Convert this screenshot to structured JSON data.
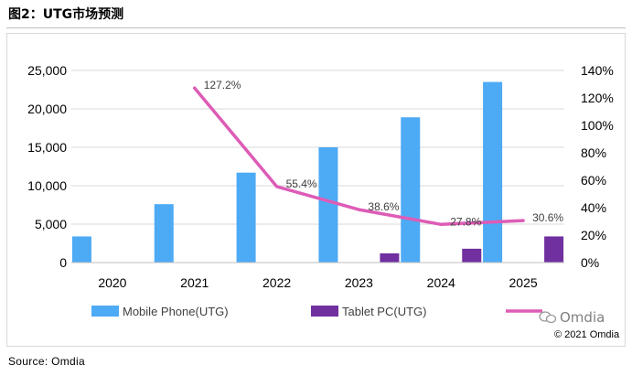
{
  "title": "图2：UTG市场预测",
  "source": "Source: Omdia",
  "brand": {
    "name": "Omdia",
    "copyright": "© 2021 Omdia"
  },
  "chart_data": {
    "type": "bar",
    "categories": [
      "2020",
      "2021",
      "2022",
      "2023",
      "2024",
      "2025"
    ],
    "series": [
      {
        "name": "Mobile Phone(UTG)",
        "type": "bar",
        "axis": "left",
        "color": "#4daaf5",
        "values": [
          3400,
          7600,
          11700,
          15000,
          18900,
          23500
        ]
      },
      {
        "name": "Tablet PC(UTG)",
        "type": "bar",
        "axis": "left",
        "color": "#7030a0",
        "values": [
          0,
          0,
          0,
          1200,
          1800,
          3400
        ]
      },
      {
        "name": "",
        "type": "line",
        "axis": "right",
        "color": "#dd5cb6",
        "values": [
          null,
          127.2,
          55.4,
          38.6,
          27.8,
          30.6
        ],
        "labels": [
          "",
          "127.2%",
          "55.4%",
          "38.6%",
          "27.8%",
          "30.6%"
        ]
      }
    ],
    "y_left": {
      "ylim": [
        0,
        25000
      ],
      "ticks": [
        "0",
        "5,000",
        "10,000",
        "15,000",
        "20,000",
        "25,000"
      ]
    },
    "y_right": {
      "ylim": [
        0,
        140
      ],
      "ticks": [
        "0%",
        "20%",
        "40%",
        "60%",
        "80%",
        "100%",
        "120%",
        "140%"
      ]
    },
    "grid": true,
    "legend": "bottom"
  }
}
